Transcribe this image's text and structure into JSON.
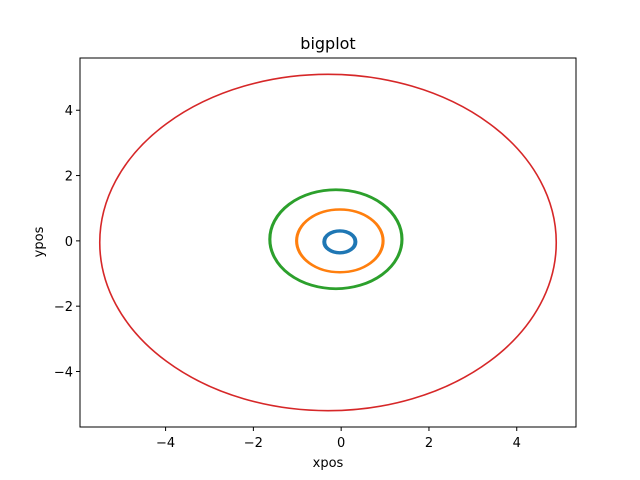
{
  "chart_data": {
    "type": "line",
    "title": "bigplot",
    "xlabel": "xpos",
    "ylabel": "ypos",
    "xlim": [
      -5.95,
      5.35
    ],
    "ylim": [
      -5.7,
      5.6
    ],
    "xticks": [
      -4,
      -2,
      0,
      2,
      4
    ],
    "yticks": [
      -4,
      -2,
      0,
      2,
      4
    ],
    "xtick_labels": [
      "−4",
      "−2",
      "0",
      "2",
      "4"
    ],
    "ytick_labels": [
      "−4",
      "−2",
      "0",
      "2",
      "4"
    ],
    "grid": false,
    "series": [
      {
        "color": "#1f77b4",
        "orbits": [
          {
            "cx": -0.03,
            "cy": -0.03,
            "rx": 0.33,
            "ry": 0.31
          },
          {
            "cx": -0.03,
            "cy": -0.03,
            "rx": 0.38,
            "ry": 0.36
          },
          {
            "cx": -0.03,
            "cy": -0.03,
            "rx": 0.36,
            "ry": 0.34
          }
        ]
      },
      {
        "color": "#ff7f0e",
        "orbits": [
          {
            "cx": -0.03,
            "cy": 0.0,
            "rx": 1.0,
            "ry": 0.97
          },
          {
            "cx": -0.03,
            "cy": 0.0,
            "rx": 0.97,
            "ry": 0.95
          }
        ]
      },
      {
        "color": "#2ca02c",
        "orbits": [
          {
            "cx": -0.12,
            "cy": 0.05,
            "rx": 1.52,
            "ry": 1.53
          },
          {
            "cx": -0.12,
            "cy": 0.05,
            "rx": 1.49,
            "ry": 1.5
          }
        ]
      },
      {
        "color": "#d62728",
        "orbits": [
          {
            "cx": -0.3,
            "cy": -0.05,
            "rx": 5.2,
            "ry": 5.15
          }
        ]
      }
    ]
  }
}
